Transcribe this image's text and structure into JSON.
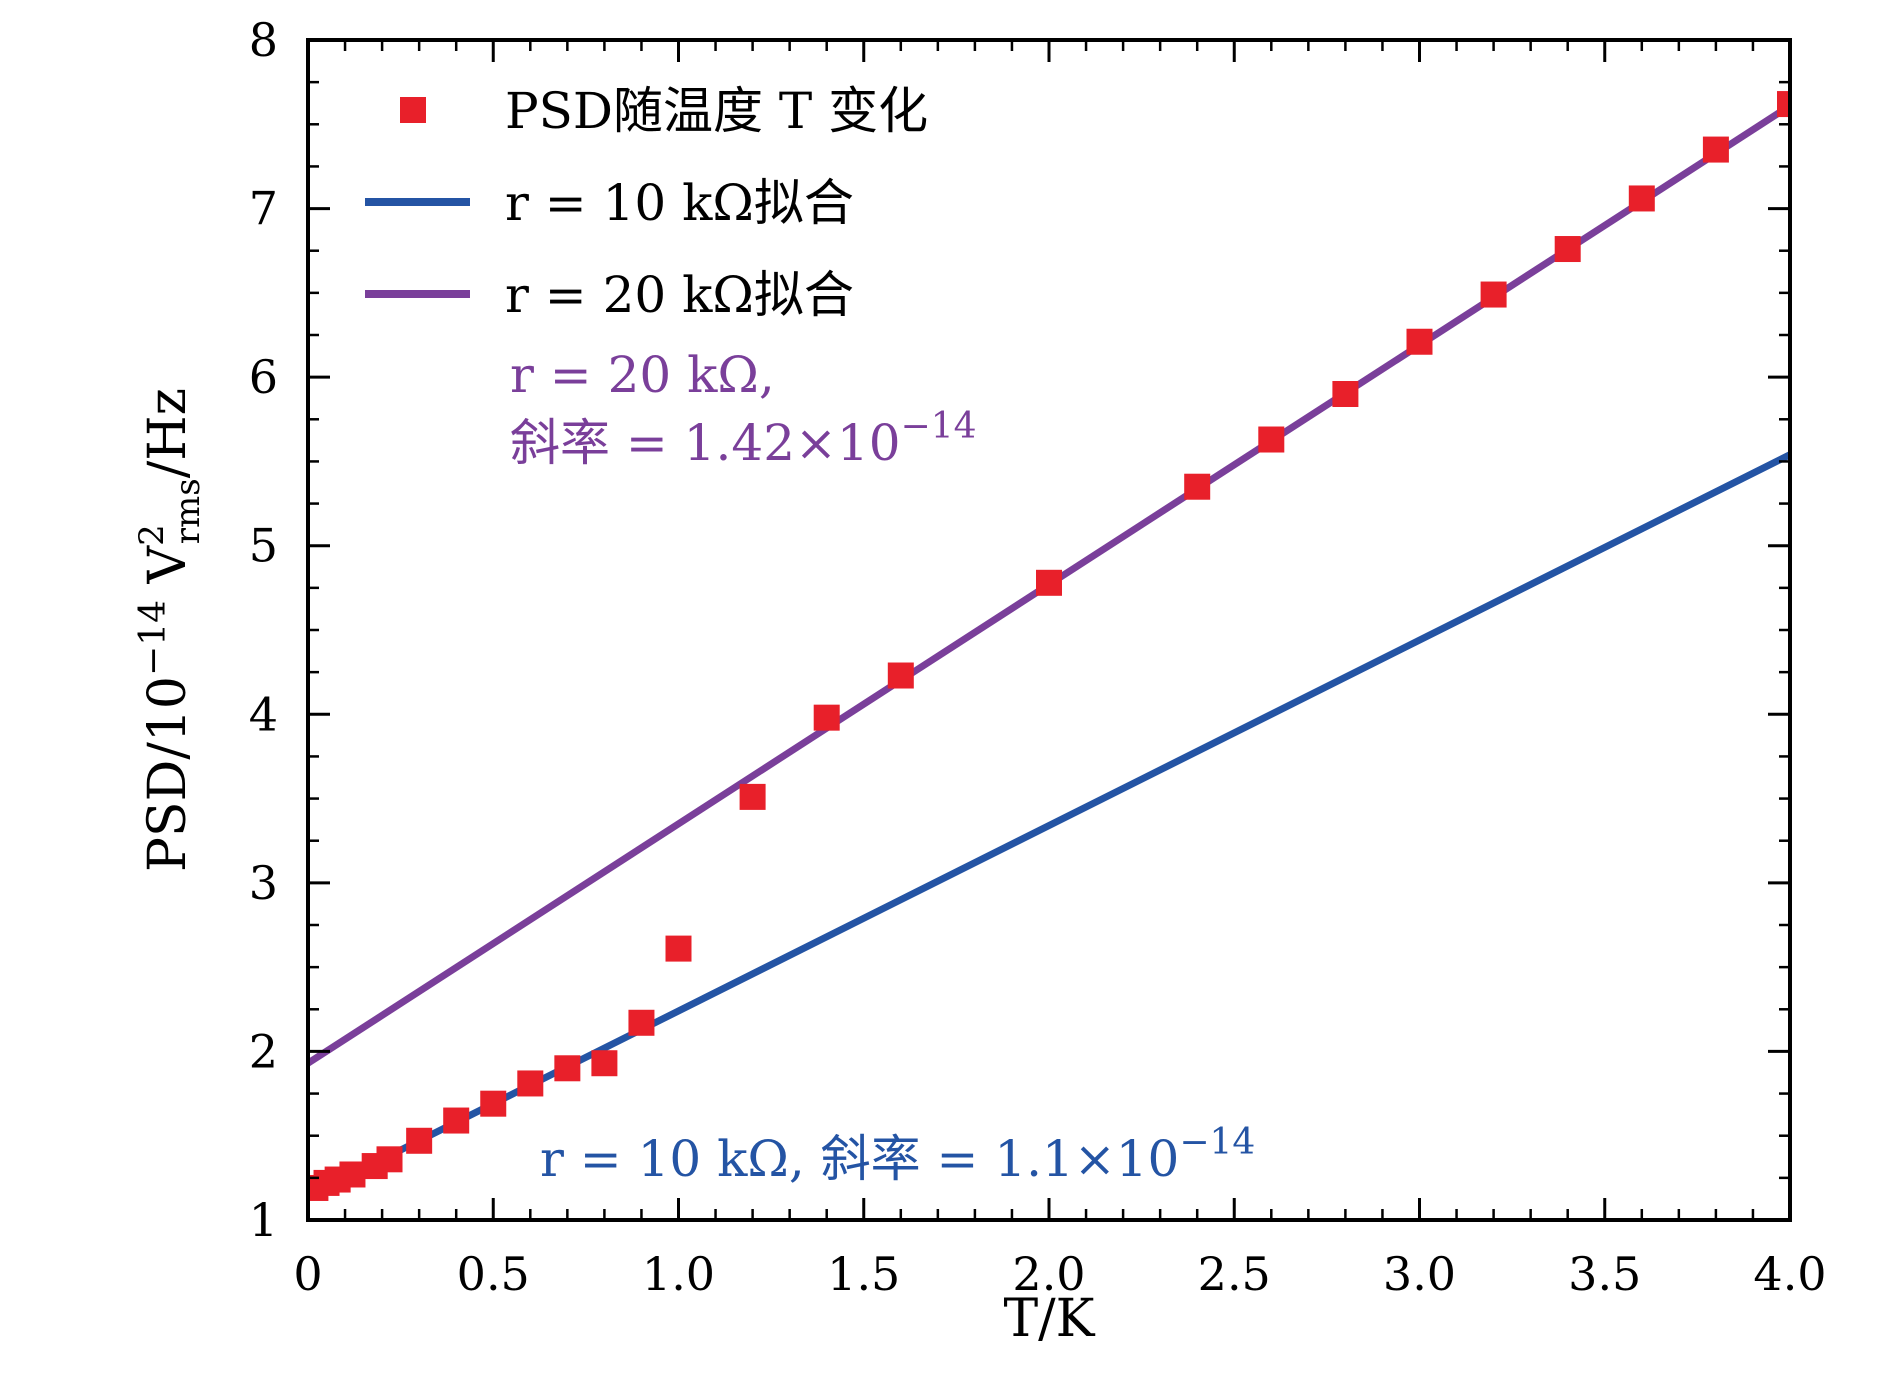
{
  "chart_data": {
    "type": "scatter",
    "xlabel": "T/K",
    "ylabel": "PSD/10⁻¹⁴ V²rms/Hz",
    "ylabel_parts": {
      "main": "PSD/10",
      "exp": "−14",
      "unit": " V",
      "sup": "2",
      "sub": "rms",
      "tail": "/Hz"
    },
    "xlim": [
      0,
      4.0
    ],
    "ylim": [
      1,
      8
    ],
    "xticks": [
      {
        "v": 0,
        "label": "0"
      },
      {
        "v": 0.5,
        "label": "0.5"
      },
      {
        "v": 1.0,
        "label": "1.0"
      },
      {
        "v": 1.5,
        "label": "1.5"
      },
      {
        "v": 2.0,
        "label": "2.0"
      },
      {
        "v": 2.5,
        "label": "2.5"
      },
      {
        "v": 3.0,
        "label": "3.0"
      },
      {
        "v": 3.5,
        "label": "3.5"
      },
      {
        "v": 4.0,
        "label": "4.0"
      }
    ],
    "yticks": [
      {
        "v": 1,
        "label": "1"
      },
      {
        "v": 2,
        "label": "2"
      },
      {
        "v": 3,
        "label": "3"
      },
      {
        "v": 4,
        "label": "4"
      },
      {
        "v": 5,
        "label": "5"
      },
      {
        "v": 6,
        "label": "6"
      },
      {
        "v": 7,
        "label": "7"
      },
      {
        "v": 8,
        "label": "8"
      }
    ],
    "grid": false,
    "legend_position": "top-left",
    "scatter_series": {
      "name": "PSD随温度 T 变化",
      "color": "#e8202a",
      "points": [
        [
          0.02,
          1.19
        ],
        [
          0.05,
          1.22
        ],
        [
          0.08,
          1.24
        ],
        [
          0.12,
          1.27
        ],
        [
          0.18,
          1.32
        ],
        [
          0.22,
          1.36
        ],
        [
          0.3,
          1.47
        ],
        [
          0.4,
          1.59
        ],
        [
          0.5,
          1.69
        ],
        [
          0.6,
          1.81
        ],
        [
          0.7,
          1.9
        ],
        [
          0.8,
          1.93
        ],
        [
          0.9,
          2.17
        ],
        [
          1.0,
          2.61
        ],
        [
          1.2,
          3.51
        ],
        [
          1.4,
          3.98
        ],
        [
          1.6,
          4.23
        ],
        [
          2.0,
          4.78
        ],
        [
          2.4,
          5.35
        ],
        [
          2.6,
          5.63
        ],
        [
          2.8,
          5.9
        ],
        [
          3.0,
          6.21
        ],
        [
          3.2,
          6.49
        ],
        [
          3.4,
          6.76
        ],
        [
          3.6,
          7.06
        ],
        [
          3.8,
          7.35
        ],
        [
          4.0,
          7.62
        ]
      ]
    },
    "fit_series": [
      {
        "name": "r = 10 kΩ拟合",
        "color": "#2454a4",
        "slope": 1.1,
        "intercept": 1.14
      },
      {
        "name": "r = 20 kΩ拟合",
        "color": "#7a3f9a",
        "slope": 1.42,
        "intercept": 1.93
      }
    ],
    "annotations": [
      {
        "line1": "r = 20 kΩ,",
        "line2_prefix": "斜率 = 1.42×10",
        "line2_exp": "−14",
        "color": "#7a3f9a"
      },
      {
        "text_prefix": "r = 10 kΩ, 斜率 = 1.1×10",
        "text_exp": "−14",
        "color": "#2454a4"
      }
    ]
  }
}
